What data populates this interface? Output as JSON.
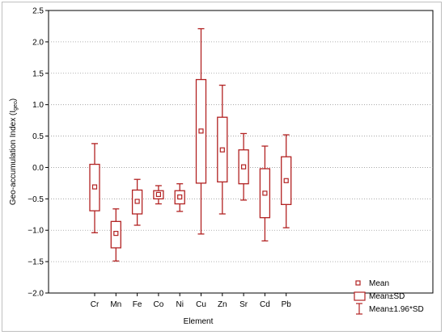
{
  "chart_data": {
    "type": "boxplot",
    "xlabel": "Element",
    "ylabel": "Geo-accumulation Index (I",
    "ylabel_subscript": "geo",
    "ylabel_suffix": ")",
    "ylim": [
      -2.0,
      2.5
    ],
    "yticks": [
      -2.0,
      -1.5,
      -1.0,
      -0.5,
      0.0,
      0.5,
      1.0,
      1.5,
      2.0,
      2.5
    ],
    "ytick_labels": [
      "−2.0",
      "−1.5",
      "−1.0",
      "−0.5",
      "0.0",
      "0.5",
      "1.0",
      "1.5",
      "2.0",
      "2.5"
    ],
    "grid": "horizontal dotted",
    "color": "#b22222",
    "categories": [
      "Cr",
      "Mn",
      "Fe",
      "Co",
      "Ni",
      "Cu",
      "Zn",
      "Sr",
      "Cd",
      "Pb"
    ],
    "mean": [
      -0.31,
      -1.05,
      -0.54,
      -0.43,
      -0.47,
      0.58,
      0.28,
      0.01,
      -0.41,
      -0.21
    ],
    "sd_low": [
      -0.69,
      -1.28,
      -0.74,
      -0.5,
      -0.58,
      -0.25,
      -0.23,
      -0.26,
      -0.8,
      -0.59
    ],
    "sd_high": [
      0.05,
      -0.86,
      -0.36,
      -0.37,
      -0.37,
      1.4,
      0.8,
      0.28,
      -0.02,
      0.17
    ],
    "ci_low": [
      -1.04,
      -1.49,
      -0.92,
      -0.58,
      -0.7,
      -1.06,
      -0.74,
      -0.52,
      -1.17,
      -0.96
    ],
    "ci_high": [
      0.38,
      -0.66,
      -0.19,
      -0.29,
      -0.26,
      2.21,
      1.31,
      0.54,
      0.34,
      0.52
    ],
    "legend": {
      "placement": "bottom-right",
      "items": [
        "Mean",
        "Mean±SD",
        "Mean±1.96*SD"
      ]
    }
  }
}
